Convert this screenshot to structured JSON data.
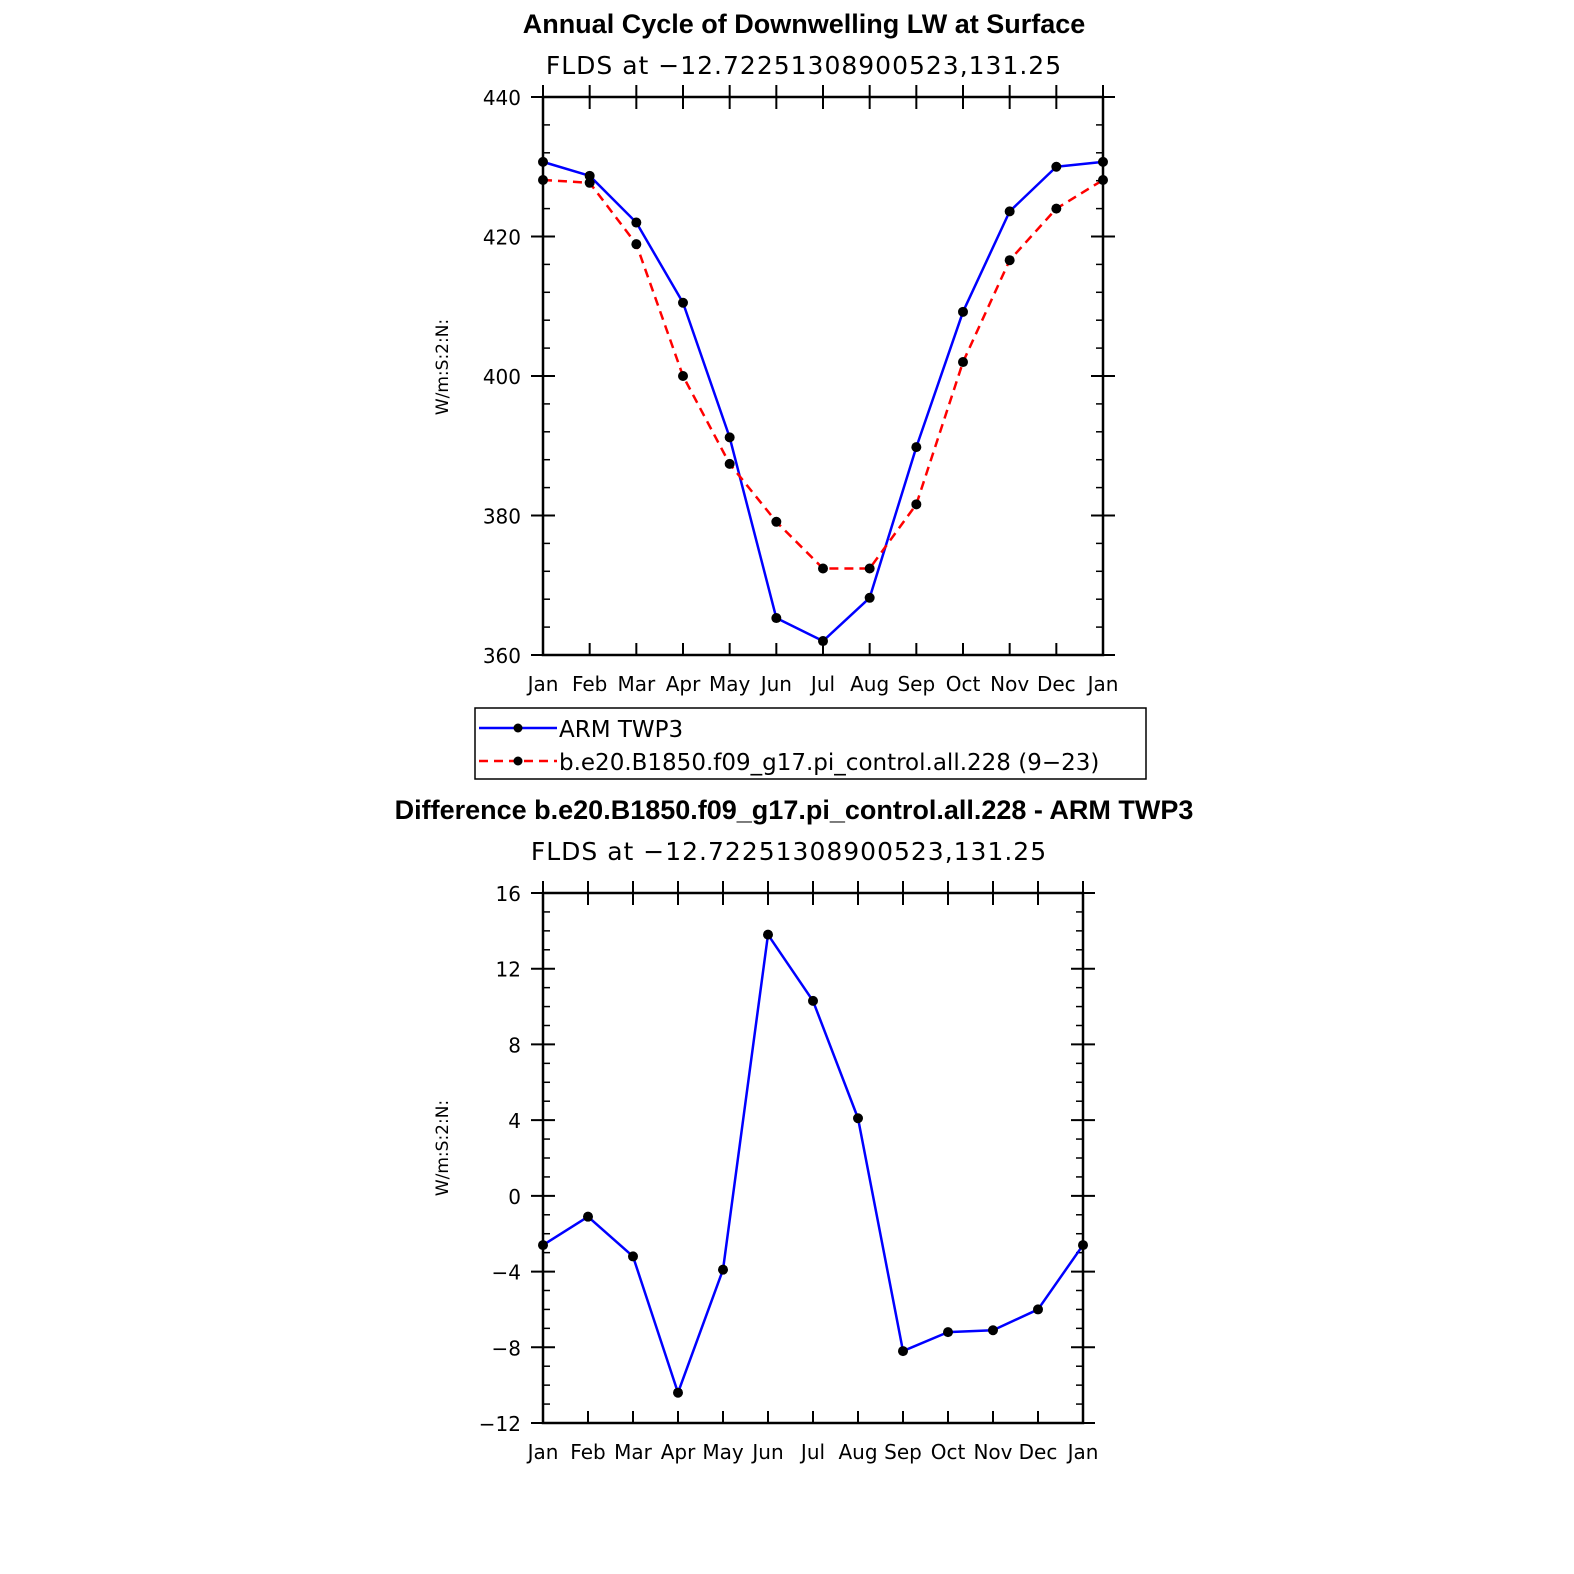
{
  "colors": {
    "obs": "#0000ff",
    "model": "#ff0000",
    "marker": "#000000",
    "axis": "#000000"
  },
  "chart_data": [
    {
      "type": "line",
      "title": "Annual Cycle of Downwelling LW at Surface",
      "subtitle": "FLDS at −12.72251308900523,131.25",
      "ylabel": "W/m:S:2:N:",
      "xlabel": "",
      "categories": [
        "Jan",
        "Feb",
        "Mar",
        "Apr",
        "May",
        "Jun",
        "Jul",
        "Aug",
        "Sep",
        "Oct",
        "Nov",
        "Dec",
        "Jan"
      ],
      "ylim": [
        360,
        440
      ],
      "yticks": [
        360,
        380,
        400,
        420,
        440
      ],
      "ytick_labels": [
        "360",
        "380",
        "400",
        "420",
        "440"
      ],
      "series": [
        {
          "name": "ARM TWP3",
          "style": "solid",
          "values": [
            430.7,
            428.7,
            422.0,
            410.5,
            391.2,
            365.3,
            362.0,
            368.2,
            389.8,
            409.2,
            423.6,
            430.0,
            430.7
          ]
        },
        {
          "name": "b.e20.B1850.f09_g17.pi_control.all.228 (9−23)",
          "style": "dashed",
          "values": [
            428.1,
            427.7,
            418.9,
            400.0,
            387.4,
            379.1,
            372.4,
            372.4,
            381.6,
            402.0,
            416.6,
            424.0,
            428.1
          ]
        }
      ],
      "legend": "below",
      "grid": false
    },
    {
      "type": "line",
      "title": "Difference b.e20.B1850.f09_g17.pi_control.all.228 - ARM TWP3",
      "subtitle": "FLDS at −12.72251308900523,131.25",
      "ylabel": "W/m:S:2:N:",
      "xlabel": "",
      "categories": [
        "Jan",
        "Feb",
        "Mar",
        "Apr",
        "May",
        "Jun",
        "Jul",
        "Aug",
        "Sep",
        "Oct",
        "Nov",
        "Dec",
        "Jan"
      ],
      "ylim": [
        -12,
        16
      ],
      "yticks": [
        -12,
        -8,
        -4,
        0,
        4,
        8,
        12,
        16
      ],
      "ytick_labels": [
        "−12",
        "−8",
        "−4",
        "0",
        "4",
        "8",
        "12",
        "16"
      ],
      "series": [
        {
          "style": "solid",
          "values": [
            -2.6,
            -1.1,
            -3.2,
            -10.4,
            -3.9,
            13.8,
            10.3,
            4.1,
            -8.2,
            -7.2,
            -7.1,
            -6.0,
            -2.6
          ]
        }
      ],
      "grid": false
    }
  ]
}
